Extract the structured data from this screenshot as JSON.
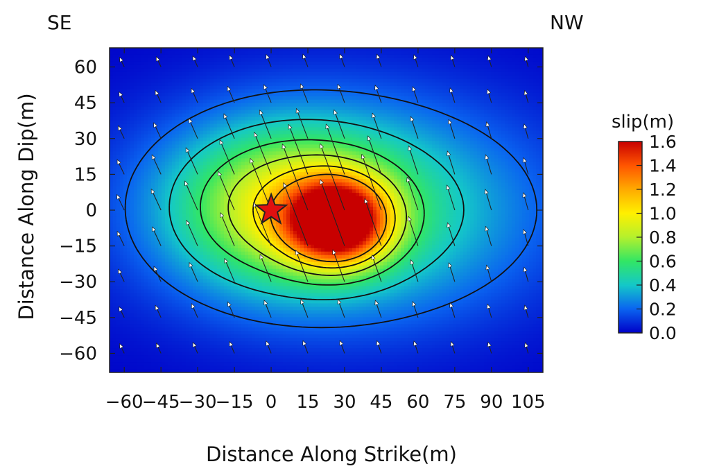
{
  "chart_data": {
    "type": "heatmap",
    "title": "",
    "xlabel": "Distance Along Strike(m)",
    "ylabel": "Distance Along Dip(m)",
    "corner_labels": {
      "left": "SE",
      "right": "NW"
    },
    "xlim": [
      -66,
      111
    ],
    "ylim": [
      -68,
      68
    ],
    "xticks": [
      -60,
      -45,
      -30,
      -15,
      0,
      15,
      30,
      45,
      60,
      75,
      90,
      105
    ],
    "xtick_labels": [
      "−60",
      "−45",
      "−30",
      "−15",
      "0",
      "15",
      "30",
      "45",
      "60",
      "75",
      "90",
      "105"
    ],
    "yticks": [
      60,
      45,
      30,
      15,
      0,
      -15,
      -30,
      -45,
      -60
    ],
    "ytick_labels": [
      "60",
      "45",
      "30",
      "15",
      "0",
      "−15",
      "−30",
      "−45",
      "−60"
    ],
    "colorbar": {
      "label": "slip(m)",
      "min": 0.0,
      "max": 1.6,
      "ticks": [
        "1.6",
        "1.4",
        "1.2",
        "1.0",
        "0.8",
        "0.6",
        "0.4",
        "0.2",
        "0.0"
      ]
    },
    "contour_levels": [
      0.2,
      0.4,
      0.6,
      0.8,
      1.0,
      1.2
    ],
    "slip_sources": [
      {
        "x": 27,
        "y": -5,
        "amp": 1.35,
        "sx": 14,
        "sy": 12
      },
      {
        "x": 5,
        "y": 2,
        "amp": 0.55,
        "sx": 30,
        "sy": 22
      },
      {
        "x": 30,
        "y": 0,
        "amp": 0.55,
        "sx": 55,
        "sy": 32
      }
    ],
    "hypocenter": {
      "x": 0,
      "y": 0
    },
    "rake_grid": {
      "x": [
        -60,
        -45,
        -30,
        -15,
        0,
        15,
        30,
        45,
        60,
        75,
        90,
        105
      ],
      "y": [
        -60,
        -45,
        -30,
        -15,
        0,
        15,
        30,
        45,
        60
      ],
      "direction": "up-left"
    }
  }
}
